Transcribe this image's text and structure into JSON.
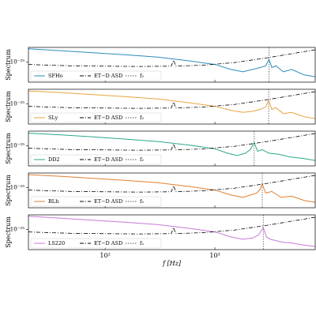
{
  "chart_data": [
    {
      "type": "line",
      "ylabel": "Spectrum",
      "log_x": true,
      "log_y": true,
      "xlim": [
        20,
        8200
      ],
      "ylim": [
        1.5e-26,
        4e-25
      ],
      "yticks": [
        {
          "value": 1e-25,
          "label": "10⁻²⁵"
        }
      ],
      "series": [
        {
          "name": "SFHo",
          "color": "#2b8cbe",
          "linestyle": "solid",
          "x": [
            20,
            40,
            80,
            150,
            300,
            600,
            1000,
            1400,
            1800,
            2200,
            2600,
            2900,
            3110,
            3300,
            3600,
            4200,
            5000,
            6500,
            8200
          ],
          "values": [
            3.5e-25,
            2.9e-25,
            2.4e-25,
            2e-25,
            1.6e-25,
            1.1e-25,
            8e-26,
            5e-26,
            4e-26,
            5e-26,
            6e-26,
            7e-26,
            1.3e-25,
            6e-26,
            7e-26,
            4e-26,
            5e-26,
            3e-26,
            2.5e-26
          ]
        },
        {
          "name": "ET−D ASD",
          "color": "#000000",
          "linestyle": "dashdot",
          "x": [
            20,
            30,
            50,
            100,
            200,
            400,
            420,
            440,
            800,
            1500,
            3000,
            5000,
            8200
          ],
          "values": [
            8e-26,
            7.5e-26,
            7e-26,
            6.8e-26,
            6.6e-26,
            6.8e-26,
            1.2e-25,
            6.8e-26,
            7.5e-26,
            9.5e-26,
            1.5e-25,
            2.2e-25,
            3.2e-25
          ]
        }
      ],
      "vline": {
        "name": "f₂",
        "value": 3110,
        "color": "#555555",
        "linestyle": "dotted"
      }
    },
    {
      "type": "line",
      "ylabel": "Spectrum",
      "log_x": true,
      "log_y": true,
      "xlim": [
        20,
        8200
      ],
      "ylim": [
        1.5e-26,
        4e-25
      ],
      "yticks": [
        {
          "value": 1e-25,
          "label": "10⁻²⁵"
        }
      ],
      "series": [
        {
          "name": "SLy",
          "color": "#e8a33d",
          "linestyle": "solid",
          "x": [
            20,
            40,
            80,
            150,
            300,
            600,
            1000,
            1400,
            1800,
            2200,
            2600,
            2900,
            3090,
            3300,
            3600,
            4200,
            5000,
            6500,
            8200
          ],
          "values": [
            3.4e-25,
            2.9e-25,
            2.4e-25,
            2e-25,
            1.6e-25,
            1.1e-25,
            8e-26,
            5.5e-26,
            4.5e-26,
            5e-26,
            6e-26,
            7.5e-26,
            1.4e-25,
            6e-26,
            7e-26,
            4e-26,
            4.5e-26,
            3e-26,
            2.5e-26
          ]
        },
        {
          "name": "ET−D ASD",
          "color": "#000000",
          "linestyle": "dashdot",
          "x": [
            20,
            30,
            50,
            100,
            200,
            400,
            420,
            440,
            800,
            1500,
            3000,
            5000,
            8200
          ],
          "values": [
            8e-26,
            7.5e-26,
            7e-26,
            6.8e-26,
            6.6e-26,
            6.8e-26,
            1.2e-25,
            6.8e-26,
            7.5e-26,
            9.5e-26,
            1.5e-25,
            2.2e-25,
            3.2e-25
          ]
        }
      ],
      "vline": {
        "name": "f₂",
        "value": 3090,
        "color": "#555555",
        "linestyle": "dotted"
      }
    },
    {
      "type": "line",
      "ylabel": "Spectrum",
      "log_x": true,
      "log_y": true,
      "xlim": [
        20,
        8200
      ],
      "ylim": [
        1.5e-26,
        4e-25
      ],
      "yticks": [
        {
          "value": 1e-25,
          "label": "10⁻²⁵"
        }
      ],
      "series": [
        {
          "name": "DD2",
          "color": "#2aa88a",
          "linestyle": "solid",
          "x": [
            20,
            40,
            80,
            150,
            300,
            600,
            1000,
            1300,
            1600,
            1900,
            2100,
            2280,
            2450,
            2700,
            3100,
            3800,
            4800,
            6500,
            8200
          ],
          "values": [
            3.3e-25,
            2.8e-25,
            2.3e-25,
            1.9e-25,
            1.5e-25,
            1.05e-25,
            7.5e-26,
            5e-26,
            4e-26,
            5e-26,
            7e-26,
            1.35e-25,
            6e-26,
            7e-26,
            5e-26,
            4.5e-26,
            3.5e-26,
            3e-26,
            2.5e-26
          ]
        },
        {
          "name": "ET−D ASD",
          "color": "#000000",
          "linestyle": "dashdot",
          "x": [
            20,
            30,
            50,
            100,
            200,
            400,
            420,
            440,
            800,
            1500,
            3000,
            5000,
            8200
          ],
          "values": [
            8e-26,
            7.5e-26,
            7e-26,
            6.8e-26,
            6.6e-26,
            6.8e-26,
            1.2e-25,
            6.8e-26,
            7.5e-26,
            9.5e-26,
            1.5e-25,
            2.2e-25,
            3.2e-25
          ]
        }
      ],
      "vline": {
        "name": "f₂",
        "value": 2280,
        "color": "#555555",
        "linestyle": "dotted"
      }
    },
    {
      "type": "line",
      "ylabel": "Spectrum",
      "log_x": true,
      "log_y": true,
      "xlim": [
        20,
        8200
      ],
      "ylim": [
        1.5e-26,
        4e-25
      ],
      "yticks": [
        {
          "value": 1e-25,
          "label": "10⁻²⁵"
        }
      ],
      "series": [
        {
          "name": "BLh",
          "color": "#e07f30",
          "linestyle": "solid",
          "x": [
            20,
            40,
            80,
            150,
            300,
            600,
            1000,
            1400,
            1800,
            2100,
            2400,
            2550,
            2700,
            2900,
            3300,
            4000,
            5000,
            6500,
            8200
          ],
          "values": [
            3.4e-25,
            2.9e-25,
            2.4e-25,
            2e-25,
            1.6e-25,
            1.1e-25,
            8e-26,
            5e-26,
            4e-26,
            5e-26,
            6e-26,
            8e-26,
            1.4e-25,
            6e-26,
            7e-26,
            4e-26,
            4.5e-26,
            3e-26,
            2.5e-26
          ]
        },
        {
          "name": "ET−D ASD",
          "color": "#000000",
          "linestyle": "dashdot",
          "x": [
            20,
            30,
            50,
            100,
            200,
            400,
            420,
            440,
            800,
            1500,
            3000,
            5000,
            8200
          ],
          "values": [
            8e-26,
            7.5e-26,
            7e-26,
            6.8e-26,
            6.6e-26,
            6.8e-26,
            1.2e-25,
            6.8e-26,
            7.5e-26,
            9.5e-26,
            1.5e-25,
            2.2e-25,
            3.2e-25
          ]
        }
      ],
      "vline": {
        "name": "f₂",
        "value": 2700,
        "color": "#555555",
        "linestyle": "dotted"
      }
    },
    {
      "type": "line",
      "ylabel": "Spectrum",
      "xlabel": "f [Hz]",
      "log_x": true,
      "log_y": true,
      "xlim": [
        20,
        8200
      ],
      "ylim": [
        1.5e-26,
        4e-25
      ],
      "yticks": [
        {
          "value": 1e-25,
          "label": "10⁻²⁵"
        }
      ],
      "xticks": [
        {
          "value": 100,
          "label": "10²"
        },
        {
          "value": 1000,
          "label": "10³"
        }
      ],
      "series": [
        {
          "name": "LS220",
          "color": "#c77ad6",
          "linestyle": "solid",
          "x": [
            20,
            40,
            80,
            150,
            300,
            600,
            1000,
            1400,
            1800,
            2200,
            2500,
            2760,
            2950,
            3200,
            3600,
            4200,
            5000,
            6500,
            8200
          ],
          "values": [
            3.5e-25,
            2.9e-25,
            2.4e-25,
            2e-25,
            1.6e-25,
            1.1e-25,
            8e-26,
            5e-26,
            4e-26,
            4.5e-26,
            6e-26,
            1.2e-25,
            5e-26,
            4e-26,
            3.5e-26,
            3e-26,
            2.8e-26,
            2.3e-26,
            2e-26
          ]
        },
        {
          "name": "ET−D ASD",
          "color": "#000000",
          "linestyle": "dashdot",
          "x": [
            20,
            30,
            50,
            100,
            200,
            400,
            420,
            440,
            800,
            1500,
            3000,
            5000,
            8200
          ],
          "values": [
            8e-26,
            7.5e-26,
            7e-26,
            6.8e-26,
            6.6e-26,
            6.8e-26,
            1.2e-25,
            6.8e-26,
            7.5e-26,
            9.5e-26,
            1.5e-25,
            2.2e-25,
            3.2e-25
          ]
        }
      ],
      "vline": {
        "name": "f₂",
        "value": 2760,
        "color": "#555555",
        "linestyle": "dotted"
      }
    }
  ]
}
